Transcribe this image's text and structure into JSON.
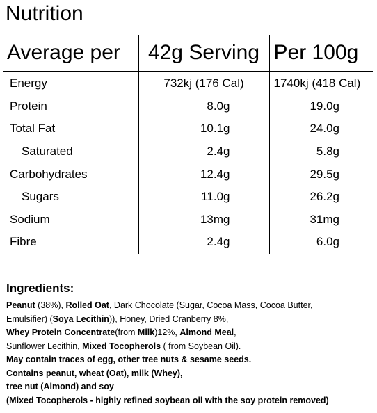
{
  "title": "Nutrition",
  "table": {
    "headers": [
      "Average per",
      "42g Serving",
      "Per 100g"
    ],
    "rows": [
      {
        "label": "Energy",
        "serving": "732kj (176 Cal)",
        "per100": "1740kj (418 Cal)"
      },
      {
        "label": "Protein",
        "serving": "8.0g",
        "per100": "19.0g"
      },
      {
        "label": "Total Fat",
        "serving": "10.1g",
        "per100": "24.0g"
      },
      {
        "label": "Saturated",
        "serving": "2.4g",
        "per100": "5.8g"
      },
      {
        "label": "Carbohydrates",
        "serving": "12.4g",
        "per100": "29.5g"
      },
      {
        "label": "Sugars",
        "serving": "11.0g",
        "per100": "26.2g"
      },
      {
        "label": "Sodium",
        "serving": "13mg",
        "per100": "31mg"
      },
      {
        "label": "Fibre",
        "serving": "2.4g",
        "per100": "6.0g"
      }
    ]
  },
  "ingredients": {
    "title": "Ingredients:",
    "line1": {
      "a": "Peanut",
      "b": " (38%), ",
      "c": "Rolled Oat",
      "d": ", Dark Chocolate (Sugar, Cocoa Mass, Cocoa Butter,"
    },
    "line2": {
      "a": "Emulsifier) (",
      "b": "Soya Lecithin",
      "c": ")), Honey, Dried Cranberry 8%,"
    },
    "line3": {
      "a": "Whey Protein Concentrate",
      "b": "(from ",
      "c": "Milk",
      "d": ")12%, ",
      "e": "Almond Meal",
      "f": ","
    },
    "line4": {
      "a": "Sunflower Lecithin, ",
      "b": "Mixed Tocopherols",
      "c": " ( from Soybean Oil)."
    },
    "line5": "May contain traces of egg, other tree nuts & sesame seeds.",
    "line6": "Contains peanut, wheat (Oat), milk (Whey),",
    "line7": "tree nut (Almond) and soy",
    "line8": "(Mixed Tocopherols - highly refined soybean oil with the soy protein removed)"
  }
}
